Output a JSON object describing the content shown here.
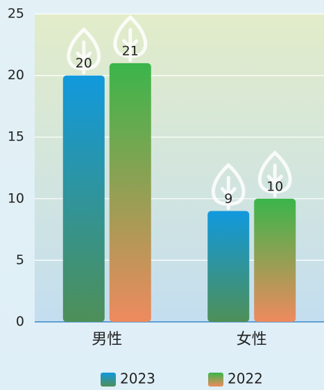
{
  "chart_data": {
    "type": "bar",
    "categories": [
      "男性",
      "女性"
    ],
    "series": [
      {
        "name": "2023",
        "color": "#1199dd",
        "gradient_end": "#4e8f58",
        "values": [
          20,
          9
        ]
      },
      {
        "name": "2022",
        "color": "#3ab54a",
        "gradient_end": "#ee8a5e",
        "values": [
          21,
          10
        ]
      }
    ],
    "ylim": [
      0,
      25
    ],
    "yticks": [
      0,
      5,
      10,
      15,
      20,
      25
    ],
    "grid": true,
    "legend": "bottom"
  }
}
